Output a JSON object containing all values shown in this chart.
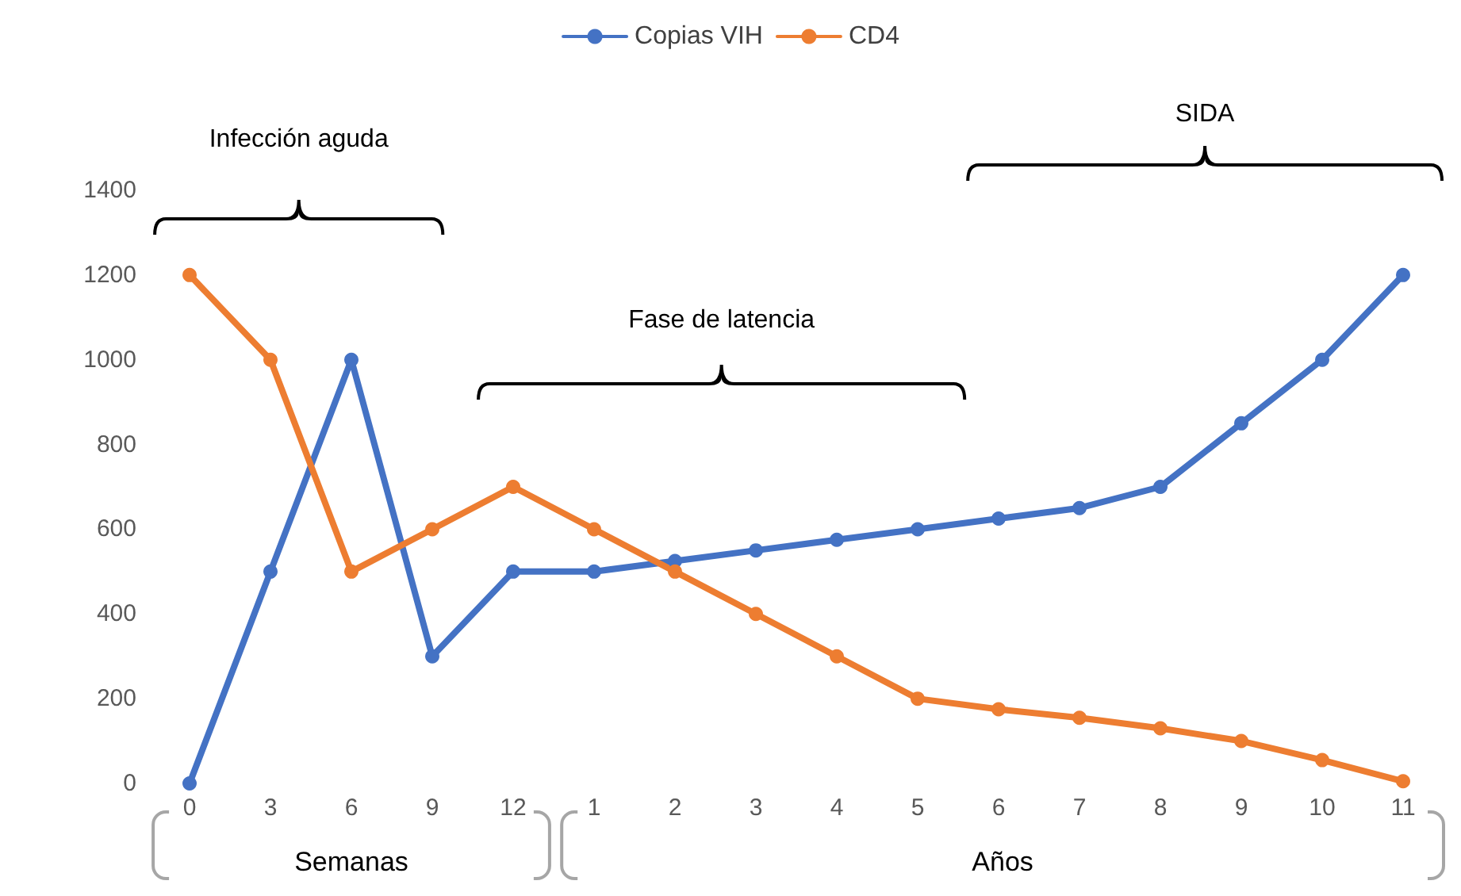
{
  "chart_data": {
    "type": "line",
    "categories": [
      "0",
      "3",
      "6",
      "9",
      "12",
      "1",
      "2",
      "3",
      "4",
      "5",
      "6",
      "7",
      "8",
      "9",
      "10",
      "11"
    ],
    "series": [
      {
        "name": "Copias VIH",
        "color": "#4472c4",
        "values": [
          0,
          500,
          1000,
          300,
          500,
          500,
          525,
          550,
          575,
          600,
          625,
          650,
          700,
          850,
          1000,
          1200
        ]
      },
      {
        "name": "CD4",
        "color": "#ed7d31",
        "values": [
          1200,
          1000,
          500,
          600,
          700,
          600,
          500,
          400,
          300,
          200,
          175,
          155,
          130,
          100,
          55,
          5
        ]
      }
    ],
    "ylim": [
      0,
      1400
    ],
    "yticks": [
      0,
      200,
      400,
      600,
      800,
      1000,
      1200,
      1400
    ],
    "grid": false,
    "legend": "top",
    "marker": "circle",
    "line_style": "solid",
    "annotations": [
      "Infección aguda",
      "Fase de latencia",
      "SIDA",
      "Semanas",
      "Años"
    ]
  }
}
